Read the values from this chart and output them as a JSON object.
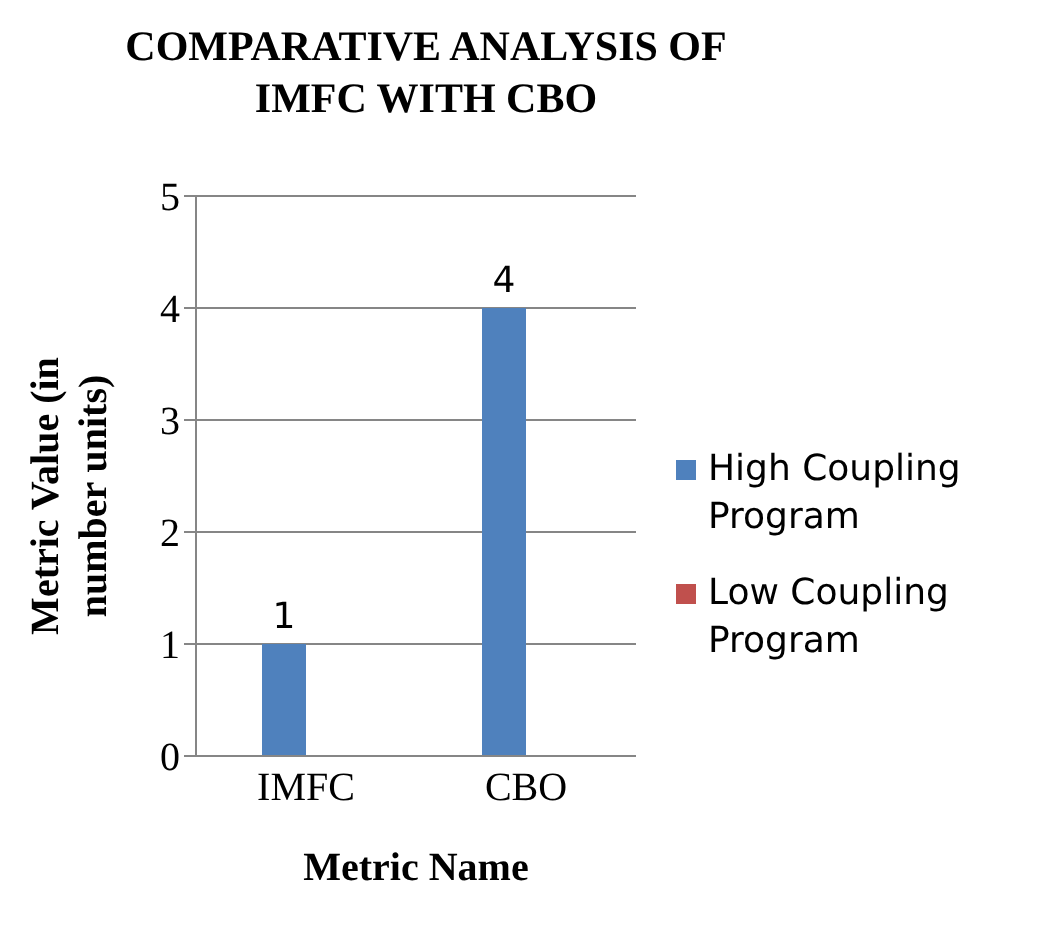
{
  "chart_data": {
    "type": "bar",
    "title": "COMPARATIVE ANALYSIS OF IMFC WITH CBO",
    "xlabel": "Metric Name",
    "ylabel": "Metric Value (in number units)",
    "categories": [
      "IMFC",
      "CBO"
    ],
    "series": [
      {
        "name": "High Coupling Program",
        "color": "#4f81bd",
        "values": [
          1,
          4
        ]
      },
      {
        "name": "Low Coupling Program",
        "color": "#c0504d",
        "values": [
          null,
          null
        ]
      }
    ],
    "ylim": [
      0,
      5
    ],
    "yticks": [
      0,
      1,
      2,
      3,
      4,
      5
    ],
    "grid": "y",
    "legend": "right",
    "data_labels": true
  }
}
